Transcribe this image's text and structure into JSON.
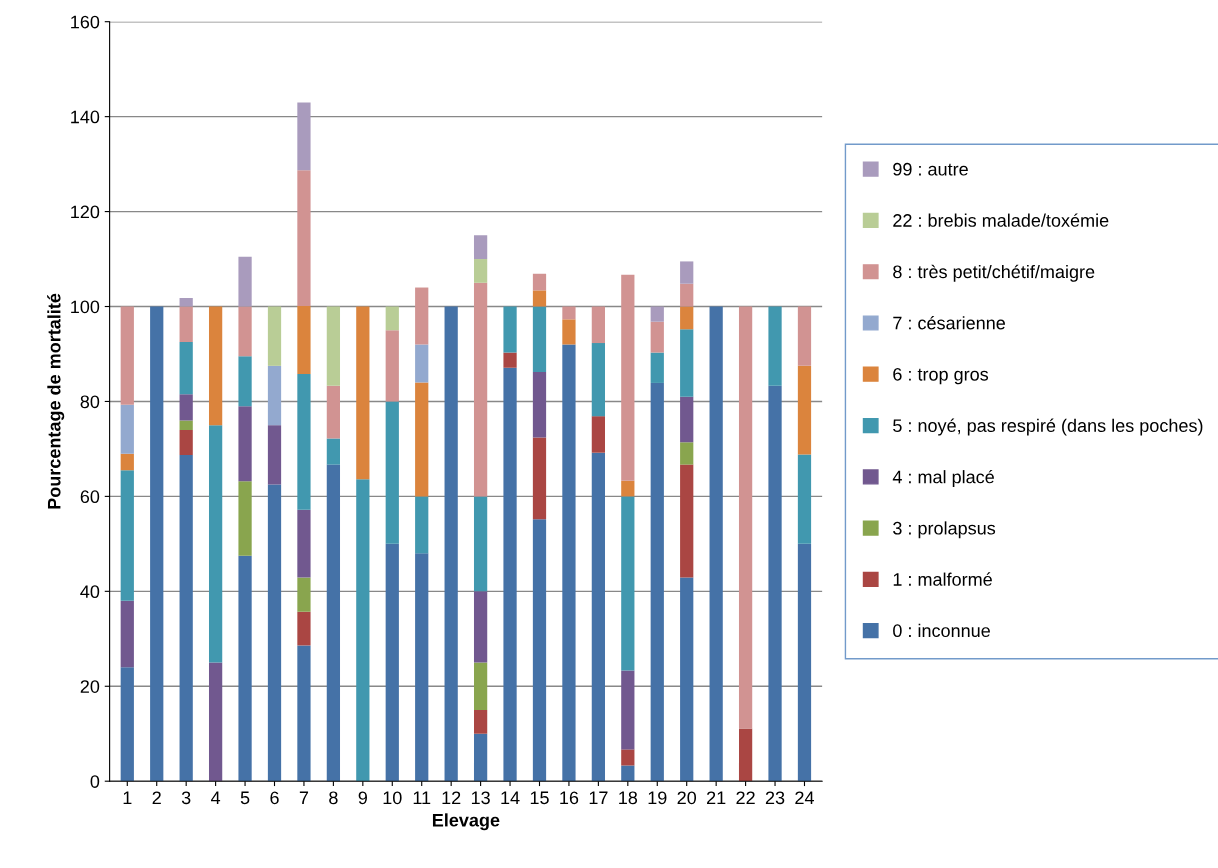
{
  "chart_data": {
    "type": "bar",
    "stacked": true,
    "xlabel": "Elevage",
    "ylabel": "Pourcentage de mortalité",
    "categories": [
      "1",
      "2",
      "3",
      "4",
      "5",
      "6",
      "7",
      "8",
      "9",
      "10",
      "11",
      "12",
      "13",
      "14",
      "15",
      "16",
      "17",
      "18",
      "19",
      "20",
      "21",
      "22",
      "23",
      "24"
    ],
    "ylim": [
      0,
      160
    ],
    "yticks": [
      0,
      20,
      40,
      60,
      80,
      100,
      120,
      140,
      160
    ],
    "grid": "y",
    "legend": "right",
    "series": [
      {
        "name": "0 : inconnue",
        "color": "#4572a7",
        "values": [
          24,
          100,
          68.7,
          0,
          47.5,
          62.5,
          28.6,
          66.7,
          0,
          50,
          48,
          100,
          10,
          87.1,
          55.2,
          92,
          69.2,
          3.3,
          83.9,
          42.9,
          100,
          0,
          83.3,
          50
        ]
      },
      {
        "name": "1 : malformé",
        "color": "#aa4643",
        "values": [
          0,
          0,
          5.3,
          0,
          0,
          0,
          7.1,
          0,
          0,
          0,
          0,
          0,
          5,
          3.2,
          17.2,
          0,
          7.7,
          3.4,
          0,
          23.8,
          0,
          11.1,
          0,
          0
        ]
      },
      {
        "name": "3 : prolapsus",
        "color": "#89a54e",
        "values": [
          0,
          0,
          2,
          0,
          15.7,
          0,
          7.2,
          0,
          0,
          0,
          0,
          0,
          10,
          0,
          0,
          0,
          0,
          0,
          0,
          4.7,
          0,
          0,
          0,
          0
        ]
      },
      {
        "name": "4 : mal placé",
        "color": "#71588f",
        "values": [
          14,
          0,
          5.5,
          25,
          15.8,
          12.5,
          14.3,
          0,
          0,
          0,
          0,
          0,
          15,
          0,
          13.8,
          0,
          0,
          16.6,
          0,
          9.6,
          0,
          0,
          0,
          0
        ]
      },
      {
        "name": "5 : noyé, pas respiré (dans les poches)",
        "color": "#4198af",
        "values": [
          27.5,
          0,
          11,
          50,
          10.5,
          0,
          28.6,
          5.5,
          63.6,
          30,
          12,
          0,
          20,
          9.7,
          13.8,
          0,
          15.4,
          36.7,
          6.4,
          14.2,
          0,
          0,
          16.7,
          18.8
        ]
      },
      {
        "name": "6 : trop gros",
        "color": "#db843d",
        "values": [
          3.5,
          0,
          0,
          25,
          0,
          0,
          14.3,
          0,
          36.4,
          0,
          24,
          0,
          0,
          0,
          3.4,
          5.3,
          0,
          3.3,
          0,
          4.8,
          0,
          0,
          0,
          18.7
        ]
      },
      {
        "name": "7 : césarienne",
        "color": "#93a9cf",
        "values": [
          10.3,
          0,
          0,
          0,
          0,
          12.5,
          0,
          0,
          0,
          0,
          8,
          0,
          0,
          0,
          0,
          0,
          0,
          0,
          0,
          0,
          0,
          0,
          0,
          0
        ]
      },
      {
        "name": "8 : très petit/chétif/maigre",
        "color": "#d19392",
        "values": [
          20.7,
          0,
          7.5,
          0,
          10.5,
          0,
          28.6,
          11.1,
          0,
          15,
          12,
          0,
          45,
          0,
          3.5,
          2.7,
          7.7,
          43.4,
          6.5,
          4.8,
          0,
          88.9,
          0,
          12.5
        ]
      },
      {
        "name": "22 : brebis malade/toxémie",
        "color": "#b9cd96",
        "values": [
          0,
          0,
          0,
          0,
          0,
          12.5,
          0,
          16.7,
          0,
          5,
          0,
          0,
          5,
          0,
          0,
          0,
          0,
          0,
          0,
          0,
          0,
          0,
          0,
          0
        ]
      },
      {
        "name": "99 : autre",
        "color": "#a99bbd",
        "values": [
          0,
          0,
          1.8,
          0,
          10.5,
          0,
          14.3,
          0,
          0,
          0,
          0,
          0,
          5,
          0,
          0,
          0,
          0,
          0,
          3.2,
          4.7,
          0,
          0,
          0,
          0
        ]
      }
    ]
  }
}
